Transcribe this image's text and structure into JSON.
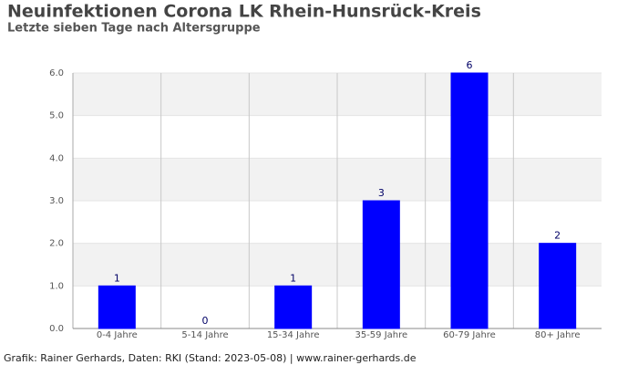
{
  "chart_data": {
    "type": "bar",
    "title": "Neuinfektionen Corona LK Rhein-Hunsrück-Kreis",
    "subtitle": "Letzte sieben Tage nach Altersgruppe",
    "categories": [
      "0-4 Jahre",
      "5-14 Jahre",
      "15-34 Jahre",
      "35-59 Jahre",
      "60-79 Jahre",
      "80+ Jahre"
    ],
    "values": [
      1,
      0,
      1,
      3,
      6,
      2
    ],
    "color": "#0000ff",
    "ylim": [
      0,
      6
    ],
    "yticks": [
      {
        "value": 0,
        "label": "0.0"
      },
      {
        "value": 1,
        "label": "1.0"
      },
      {
        "value": 2,
        "label": "2.0"
      },
      {
        "value": 3,
        "label": "3.0"
      },
      {
        "value": 4,
        "label": "4.0"
      },
      {
        "value": 5,
        "label": "5.0"
      },
      {
        "value": 6,
        "label": "6.0"
      }
    ],
    "grid": true,
    "footer": "Grafik: Rainer Gerhards, Daten: RKI (Stand: 2023-05-08) | www.rainer-gerhards.de"
  }
}
